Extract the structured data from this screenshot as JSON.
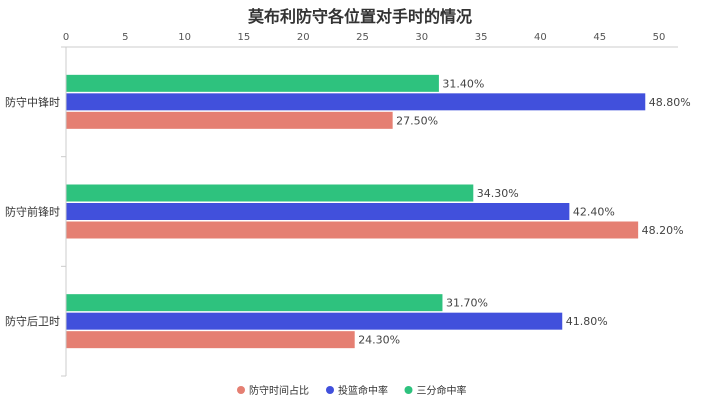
{
  "chart_data": {
    "type": "bar",
    "orientation": "horizontal",
    "title": "莫布利防守各位置对手时的情况",
    "xlabel": "",
    "ylabel": "",
    "xlim": [
      0,
      50
    ],
    "x_ticks": [
      "0",
      "5",
      "10",
      "15",
      "20",
      "25",
      "30",
      "35",
      "40",
      "45",
      "50"
    ],
    "x_axis_position": "top",
    "grid": false,
    "legend_position": "bottom",
    "categories": [
      "防守中锋时",
      "防守前锋时",
      "防守后卫时"
    ],
    "series": [
      {
        "name": "三分命中率",
        "color": "#2ec27e",
        "values": [
          31.4,
          34.3,
          31.7
        ],
        "labels": [
          "31.40%",
          "34.30%",
          "31.70%"
        ]
      },
      {
        "name": "投篮命中率",
        "color": "#4150dc",
        "values": [
          48.8,
          42.4,
          41.8
        ],
        "labels": [
          "48.80%",
          "42.40%",
          "41.80%"
        ]
      },
      {
        "name": "防守时间占比",
        "color": "#e57f72",
        "values": [
          27.5,
          48.2,
          24.3
        ],
        "labels": [
          "27.50%",
          "48.20%",
          "24.30%"
        ]
      }
    ],
    "legend_order": [
      "防守时间占比",
      "投篮命中率",
      "三分命中率"
    ]
  }
}
